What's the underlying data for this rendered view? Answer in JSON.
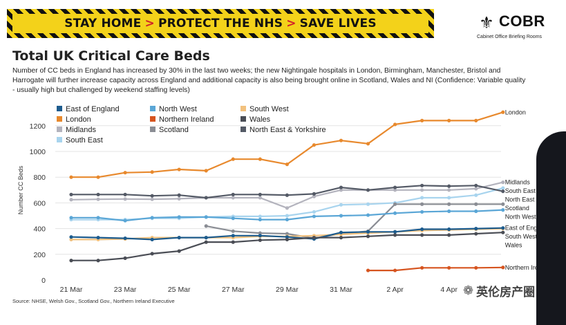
{
  "banner": {
    "parts": [
      "STAY HOME",
      "PROTECT THE NHS",
      "SAVE LIVES"
    ],
    "arrow": ">",
    "color": "#f3d21a"
  },
  "logo": {
    "name": "COBR",
    "subtitle": "Cabinet Office Briefing Rooms",
    "crest_icon": "royal-crest-icon"
  },
  "title": "Total UK Critical Care Beds",
  "description": "Number of CC beds in England has increased by 30% in the last two weeks; the new Nightingale hospitals in London, Birmingham, Manchester, Bristol and Harrogate will further increase capacity across England and additional capacity is also being brought online in Scotland, Wales and NI (Confidence: Variable quality - usually high but challenged by weekend staffing levels)",
  "source": "Source: NHSE, Welsh Gov., Scotland Gov., Northern Ireland Executive",
  "watermark": "英伦房产圈",
  "chart_data": {
    "type": "line",
    "title": "Total UK Critical Care Beds",
    "xlabel": "",
    "ylabel": "Number CC Beds",
    "ylim": [
      0,
      1300
    ],
    "yticks": [
      0,
      200,
      400,
      600,
      800,
      1000,
      1200
    ],
    "x": [
      "21 Mar",
      "22 Mar",
      "23 Mar",
      "24 Mar",
      "25 Mar",
      "26 Mar",
      "27 Mar",
      "28 Mar",
      "29 Mar",
      "30 Mar",
      "31 Mar",
      "1 Apr",
      "2 Apr",
      "3 Apr",
      "4 Apr",
      "5 Apr",
      "6 Apr"
    ],
    "xtick_labels": [
      "21 Mar",
      "23 Mar",
      "25 Mar",
      "27 Mar",
      "29 Mar",
      "31 Mar",
      "2 Apr",
      "4 Apr"
    ],
    "grid": "horizontal",
    "legend_position": "top-left",
    "series": [
      {
        "name": "London",
        "color": "#e8892d",
        "end_label": "London",
        "values": [
          800,
          800,
          835,
          840,
          860,
          850,
          940,
          940,
          900,
          1050,
          1085,
          1060,
          1210,
          1240,
          1240,
          1240,
          1305
        ]
      },
      {
        "name": "Midlands",
        "color": "#b3b3bd",
        "end_label": "Midlands",
        "values": [
          625,
          628,
          630,
          628,
          632,
          640,
          640,
          640,
          560,
          650,
          700,
          700,
          700,
          700,
          700,
          710,
          760
        ]
      },
      {
        "name": "South East",
        "color": "#a8d4ee",
        "end_label": "South East",
        "values": [
          470,
          470,
          470,
          480,
          480,
          490,
          495,
          495,
          500,
          530,
          585,
          590,
          600,
          640,
          640,
          660,
          715
        ]
      },
      {
        "name": "North East & Yorkshire",
        "color": "#545a66",
        "end_label": "North East & York",
        "values": [
          665,
          665,
          665,
          655,
          660,
          640,
          665,
          665,
          660,
          670,
          720,
          700,
          720,
          735,
          730,
          735,
          690
        ]
      },
      {
        "name": "Scotland",
        "color": "#8a8d94",
        "end_label": "Scotland",
        "values": [
          null,
          null,
          null,
          null,
          null,
          420,
          380,
          365,
          360,
          325,
          360,
          380,
          590,
          590,
          590,
          590,
          590
        ]
      },
      {
        "name": "North West",
        "color": "#5aa6d6",
        "end_label": "North West",
        "values": [
          485,
          485,
          462,
          485,
          490,
          490,
          480,
          470,
          470,
          495,
          500,
          505,
          520,
          530,
          535,
          535,
          545
        ]
      },
      {
        "name": "South West",
        "color": "#f2c17e",
        "end_label": "South West",
        "values": [
          315,
          315,
          320,
          330,
          330,
          330,
          330,
          340,
          340,
          345,
          355,
          365,
          375,
          385,
          390,
          395,
          400
        ]
      },
      {
        "name": "East of England",
        "color": "#1d5c8e",
        "end_label": "East of England",
        "values": [
          335,
          330,
          325,
          315,
          330,
          330,
          345,
          345,
          335,
          320,
          370,
          375,
          375,
          395,
          395,
          400,
          405
        ]
      },
      {
        "name": "Wales",
        "color": "#4a4d55",
        "end_label": "Wales",
        "values": [
          152,
          152,
          170,
          205,
          225,
          295,
          295,
          310,
          315,
          330,
          330,
          340,
          350,
          350,
          350,
          360,
          370
        ]
      },
      {
        "name": "Northern Ireland",
        "color": "#d6541f",
        "end_label": "Northern Ireland",
        "values": [
          null,
          null,
          null,
          null,
          null,
          null,
          null,
          null,
          null,
          null,
          null,
          75,
          75,
          95,
          95,
          95,
          98
        ]
      }
    ]
  }
}
